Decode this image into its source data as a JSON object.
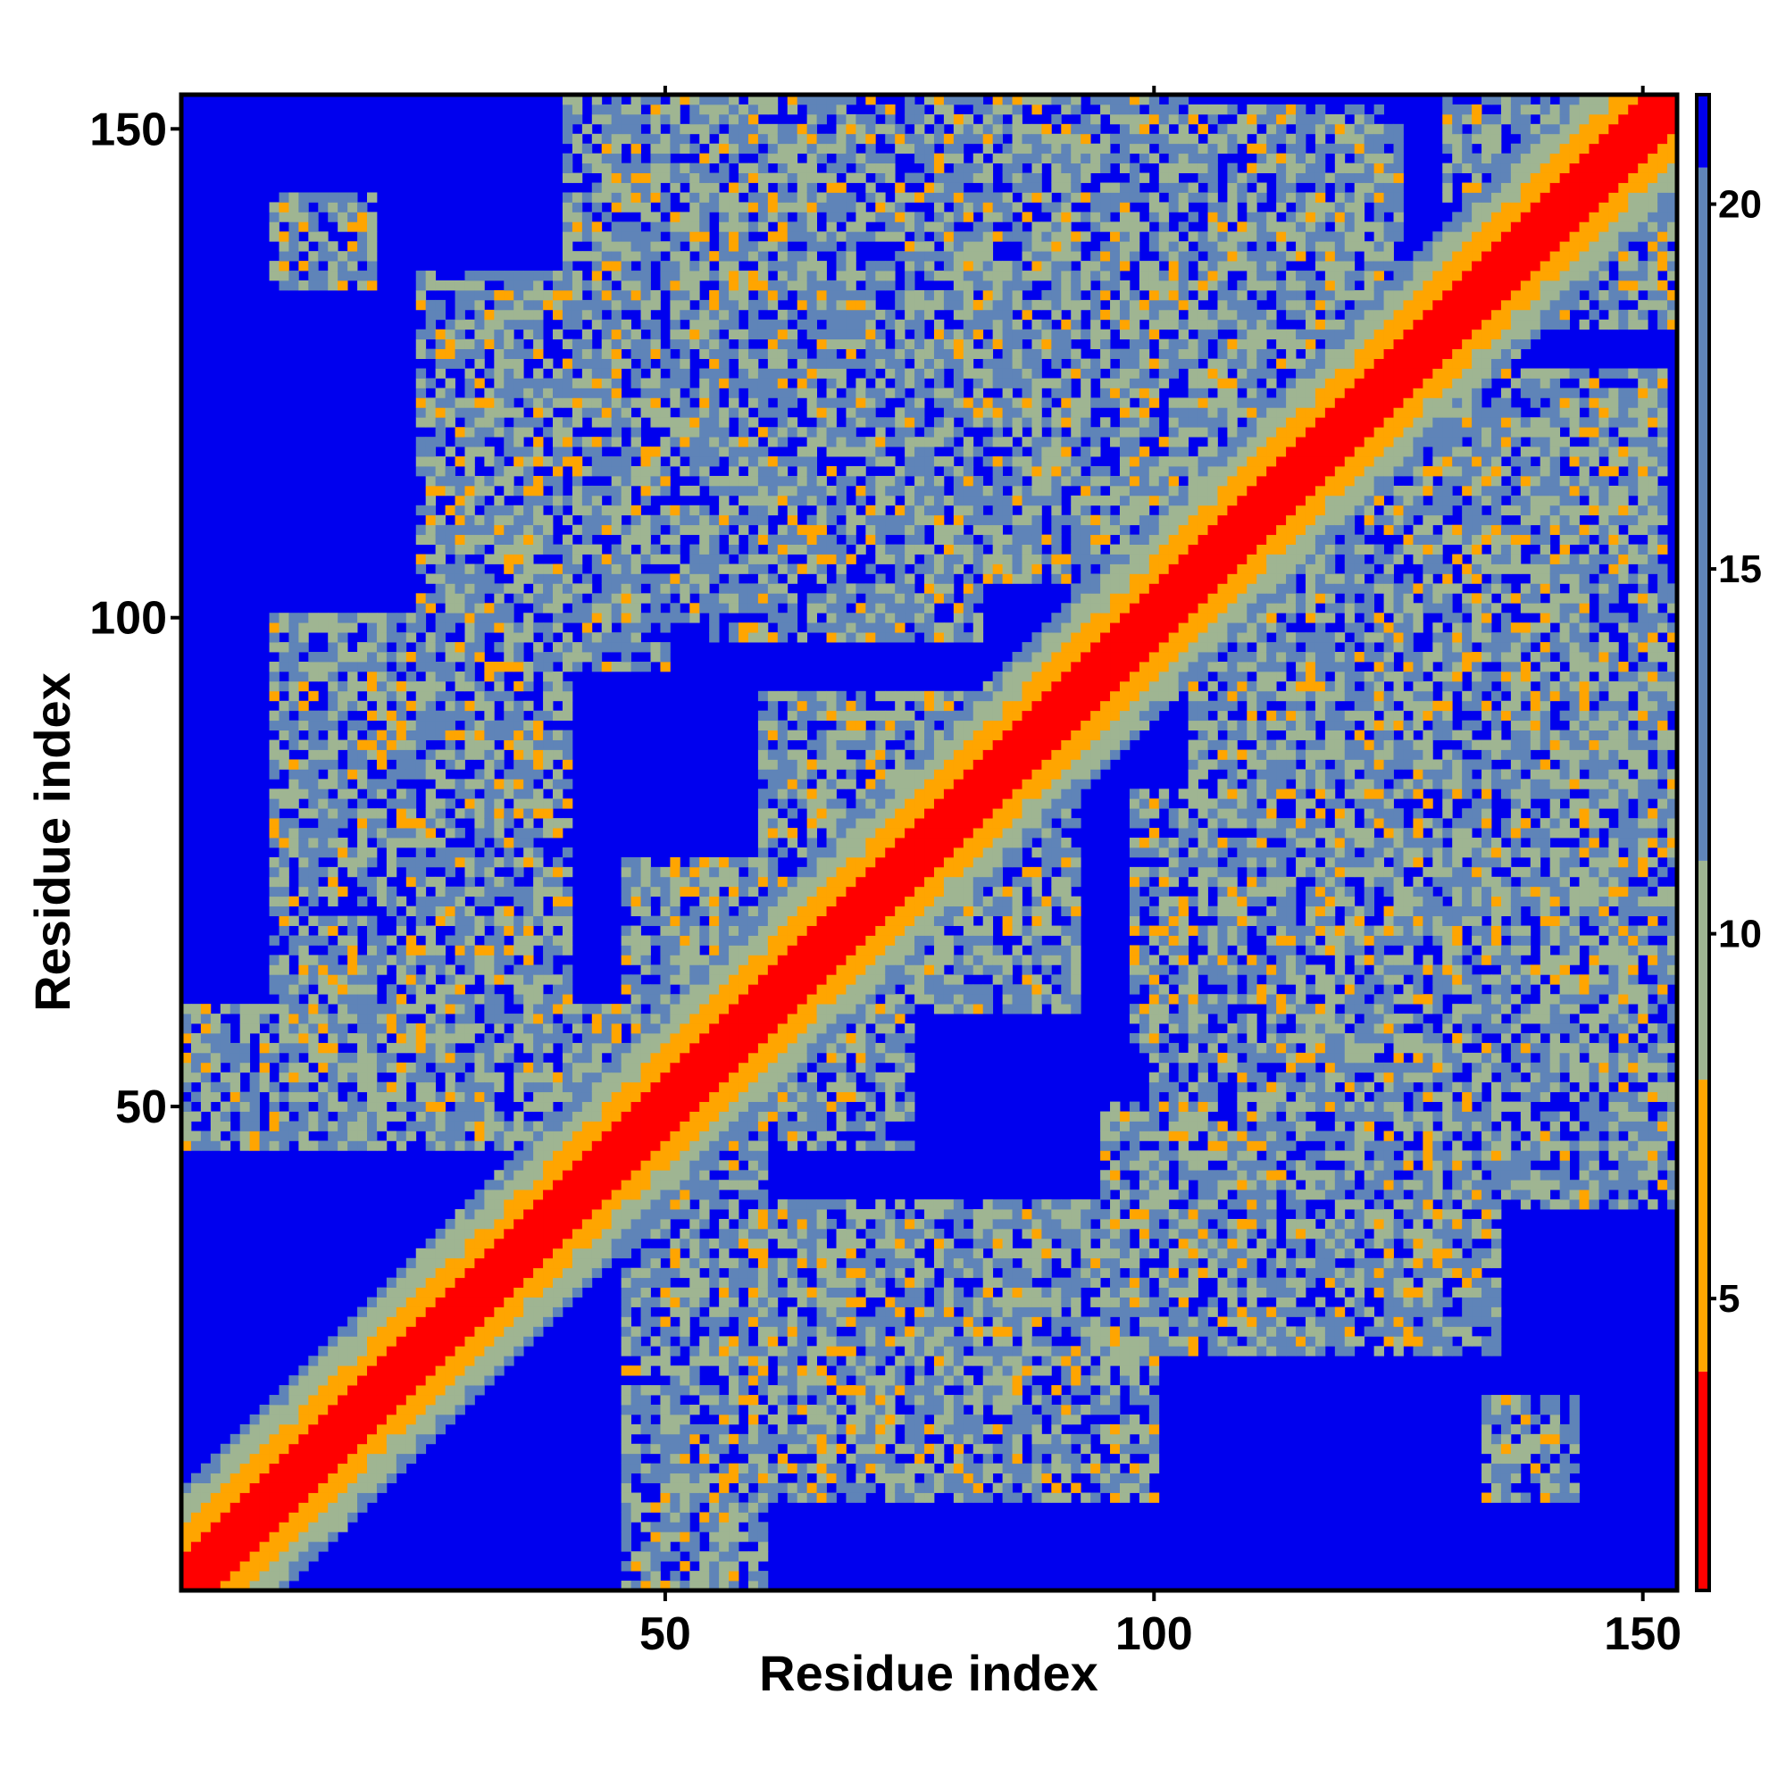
{
  "chart_data": {
    "type": "heatmap",
    "title": "",
    "xlabel": "Residue index",
    "ylabel": "Residue index",
    "n_residues": 153,
    "xlim": [
      1,
      153
    ],
    "ylim": [
      1,
      153
    ],
    "x_ticks": [
      50,
      100,
      150
    ],
    "y_ticks": [
      50,
      100,
      150
    ],
    "x_tick_labels": [
      "50",
      "100",
      "150"
    ],
    "y_tick_labels": [
      "50",
      "100",
      "150"
    ],
    "colorbar": {
      "range": [
        1,
        21.5
      ],
      "ticks": [
        5,
        10,
        15,
        20
      ],
      "tick_labels": [
        "5",
        "10",
        "15",
        "20"
      ],
      "colors": [
        {
          "max": 4.0,
          "color": "#ff0000"
        },
        {
          "max": 8.0,
          "color": "#ffa500"
        },
        {
          "max": 11.0,
          "color": "#9fb592"
        },
        {
          "max": 20.5,
          "color": "#5f84b8"
        },
        {
          "max": 99,
          "color": "#0000ee"
        }
      ]
    },
    "symmetric": true,
    "diagonal_band": {
      "red_within": 3,
      "orange_within": 6,
      "green_within": 10
    },
    "contact_regions": [
      {
        "x_range": [
          1,
          75
        ],
        "y_range": [
          46,
          60
        ],
        "note": "anti-diagonal hairpin band crossing near residue 45"
      },
      {
        "x_range": [
          26,
          40
        ],
        "y_range": [
          60,
          104
        ]
      },
      {
        "x_range": [
          40,
          72
        ],
        "y_range": [
          100,
          153
        ]
      },
      {
        "x_range": [
          60,
          92
        ],
        "y_range": [
          70,
          92
        ]
      },
      {
        "x_range": [
          75,
          103
        ],
        "y_range": [
          134,
          153
        ]
      },
      {
        "x_range": [
          92,
          135
        ],
        "y_range": [
          95,
          125
        ]
      },
      {
        "x_range": [
          98,
          152
        ],
        "y_range": [
          55,
          82
        ]
      },
      {
        "x_range": [
          104,
          152
        ],
        "y_range": [
          81,
          125
        ]
      },
      {
        "x_range": [
          60,
          100
        ],
        "y_range": [
          10,
          30
        ]
      },
      {
        "x_range": [
          95,
          135
        ],
        "y_range": [
          25,
          50
        ]
      },
      {
        "x_range": [
          135,
          143
        ],
        "y_range": [
          13,
          20
        ]
      },
      {
        "x_range": [
          10,
          20
        ],
        "y_range": [
          134,
          143
        ]
      },
      {
        "x_range": [
          130,
          153
        ],
        "y_range": [
          134,
          153
        ]
      }
    ]
  }
}
